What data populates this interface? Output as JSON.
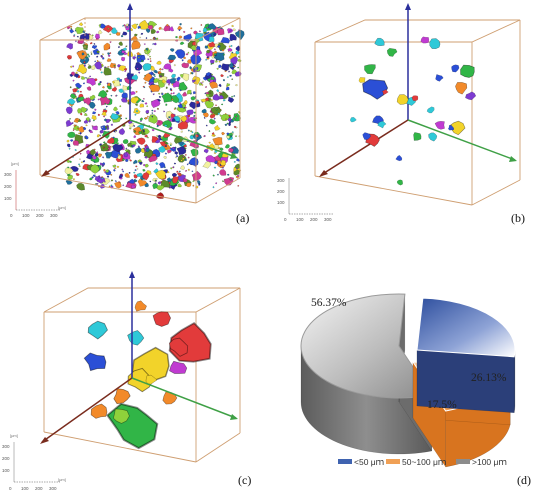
{
  "panels": {
    "a": {
      "label": "(a)"
    },
    "b": {
      "label": "(b)"
    },
    "c": {
      "label": "(c)"
    },
    "d": {
      "label": "(d)"
    }
  },
  "scale_bar": {
    "unit": "[μm]",
    "y_ticks": [
      "300",
      "200",
      "100",
      "0"
    ],
    "x_ticks": [
      "0",
      "100",
      "200",
      "300"
    ]
  },
  "chart_data": {
    "type": "pie",
    "style": "3d-exploded",
    "categories": [
      "<50 μm",
      "50~100 μm",
      ">100 μm"
    ],
    "values": [
      26.13,
      17.5,
      56.37
    ],
    "data_labels": [
      "26.13%",
      "17.5%",
      "56.37%"
    ],
    "colors": [
      "#3f63b0",
      "#f0a055",
      "#8c8c8c"
    ],
    "legend_position": "bottom"
  },
  "legend": [
    {
      "label": "<50 μｍ",
      "color": "#3f63b0"
    },
    {
      "label": "50~100 μｍ",
      "color": "#f0a055"
    },
    {
      "label": ">100 μｍ",
      "color": "#8c8c8c"
    }
  ]
}
